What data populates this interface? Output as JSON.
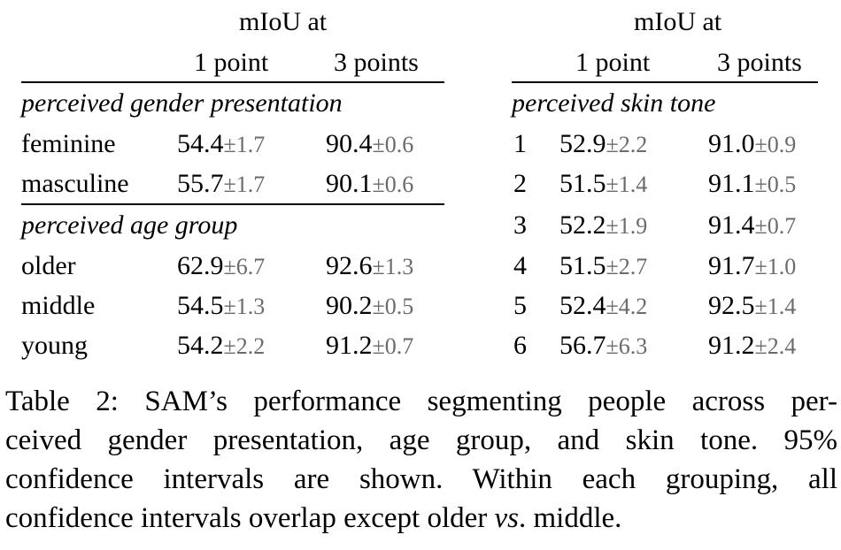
{
  "left_table": {
    "header_top": "mIoU at",
    "col1": "1 point",
    "col2": "3 points",
    "sections": [
      {
        "title": "perceived gender presentation",
        "rows": [
          {
            "label": "feminine",
            "v1": "54.4",
            "e1": "±1.7",
            "v2": "90.4",
            "e2": "±0.6"
          },
          {
            "label": "masculine",
            "v1": "55.7",
            "e1": "±1.7",
            "v2": "90.1",
            "e2": "±0.6"
          }
        ]
      },
      {
        "title": "perceived age group",
        "rows": [
          {
            "label": "older",
            "v1": "62.9",
            "e1": "±6.7",
            "v2": "92.6",
            "e2": "±1.3"
          },
          {
            "label": "middle",
            "v1": "54.5",
            "e1": "±1.3",
            "v2": "90.2",
            "e2": "±0.5"
          },
          {
            "label": "young",
            "v1": "54.2",
            "e1": "±2.2",
            "v2": "91.2",
            "e2": "±0.7"
          }
        ]
      }
    ]
  },
  "right_table": {
    "header_top": "mIoU at",
    "col1": "1 point",
    "col2": "3 points",
    "section_title": "perceived skin tone",
    "rows": [
      {
        "label": "1",
        "v1": "52.9",
        "e1": "±2.2",
        "v2": "91.0",
        "e2": "±0.9"
      },
      {
        "label": "2",
        "v1": "51.5",
        "e1": "±1.4",
        "v2": "91.1",
        "e2": "±0.5"
      },
      {
        "label": "3",
        "v1": "52.2",
        "e1": "±1.9",
        "v2": "91.4",
        "e2": "±0.7"
      },
      {
        "label": "4",
        "v1": "51.5",
        "e1": "±2.7",
        "v2": "91.7",
        "e2": "±1.0"
      },
      {
        "label": "5",
        "v1": "52.4",
        "e1": "±4.2",
        "v2": "92.5",
        "e2": "±1.4"
      },
      {
        "label": "6",
        "v1": "56.7",
        "e1": "±6.3",
        "v2": "91.2",
        "e2": "±2.4"
      }
    ]
  },
  "caption": {
    "line1": "Table 2: SAM’s performance segmenting people across per-",
    "line2": "ceived gender presentation, age group, and skin tone. 95%",
    "line3": "confidence intervals are shown. Within each grouping, all",
    "line4_pre": "confidence intervals overlap except older ",
    "line4_em": "vs",
    "line4_post": ". middle."
  }
}
